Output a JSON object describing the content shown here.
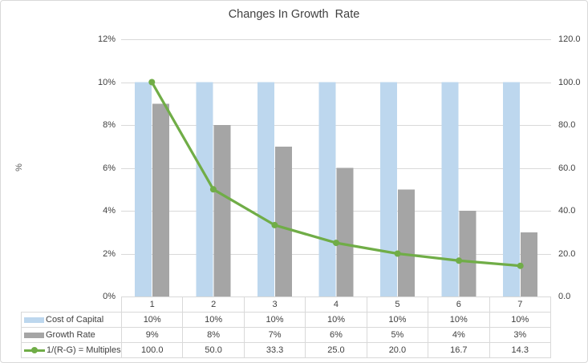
{
  "title": "Changes In Growth  Rate",
  "left_axis": {
    "title": "%",
    "ticks": [
      "0%",
      "2%",
      "4%",
      "6%",
      "8%",
      "10%",
      "12%"
    ],
    "max": 12
  },
  "right_axis": {
    "ticks": [
      "0.0",
      "20.0",
      "40.0",
      "60.0",
      "80.0",
      "100.0",
      "120.0"
    ],
    "max": 120
  },
  "chart_data": {
    "type": "combo-bar-line",
    "title": "Changes In Growth  Rate",
    "categories": [
      "1",
      "2",
      "3",
      "4",
      "5",
      "6",
      "7"
    ],
    "left_ylim": [
      0,
      12
    ],
    "right_ylim": [
      0,
      120
    ],
    "grid": true,
    "legend_position": "data-table-below",
    "series": [
      {
        "name": "Cost of Capital",
        "type": "bar",
        "axis": "left",
        "color": "#BDD7EE",
        "values": [
          10,
          10,
          10,
          10,
          10,
          10,
          10
        ],
        "display": [
          "10%",
          "10%",
          "10%",
          "10%",
          "10%",
          "10%",
          "10%"
        ]
      },
      {
        "name": "Growth Rate",
        "type": "bar",
        "axis": "left",
        "color": "#A5A5A5",
        "values": [
          9,
          8,
          7,
          6,
          5,
          4,
          3
        ],
        "display": [
          "9%",
          "8%",
          "7%",
          "6%",
          "5%",
          "4%",
          "3%"
        ]
      },
      {
        "name": "1/(R-G) = Multiples",
        "type": "line",
        "axis": "right",
        "color": "#70AD47",
        "values": [
          100.0,
          50.0,
          33.3,
          25.0,
          20.0,
          16.7,
          14.3
        ],
        "display": [
          "100.0",
          "50.0",
          "33.3",
          "25.0",
          "20.0",
          "16.7",
          "14.3"
        ]
      }
    ]
  },
  "colors": {
    "gridline": "#D9D9D9",
    "border": "#D9D9D9",
    "text": "#404040"
  }
}
